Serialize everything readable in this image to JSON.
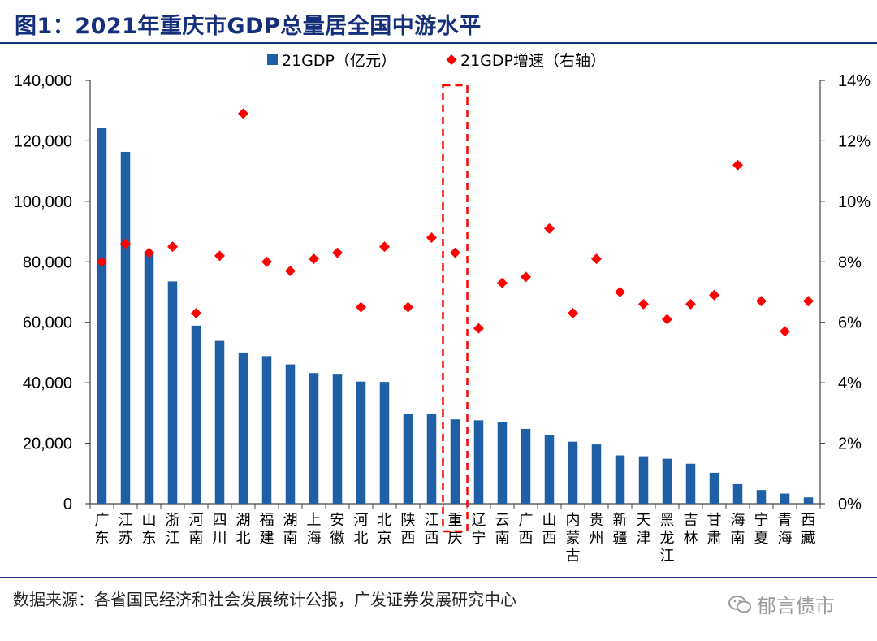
{
  "header": {
    "title": "图1：2021年重庆市GDP总量居全国中游水平"
  },
  "footer": {
    "source": "数据来源：各省国民经济和社会发展统计公报，广发证券发展研究中心",
    "watermark": "郁言债市"
  },
  "colors": {
    "bar": "#1f5fa5",
    "marker": "#ff0000",
    "highlight": "#ff0000",
    "title": "#15307a"
  },
  "chart_data": {
    "type": "bar",
    "categories": [
      "广东",
      "江苏",
      "山东",
      "浙江",
      "河南",
      "四川",
      "湖北",
      "福建",
      "湖南",
      "上海",
      "安徽",
      "河北",
      "北京",
      "陕西",
      "江西",
      "重庆",
      "辽宁",
      "云南",
      "广西",
      "山西",
      "内蒙古",
      "贵州",
      "新疆",
      "天津",
      "黑龙江",
      "吉林",
      "甘肃",
      "海南",
      "宁夏",
      "青海",
      "西藏"
    ],
    "series": [
      {
        "name": "21GDP（亿元）",
        "kind": "bar",
        "axis": "left",
        "values": [
          124370,
          116364,
          83096,
          73516,
          58887,
          53851,
          50013,
          48810,
          46063,
          43215,
          42959,
          40391,
          40270,
          29801,
          29620,
          27894,
          27584,
          27147,
          24741,
          22590,
          20514,
          19586,
          15984,
          15695,
          14879,
          13236,
          10243,
          6475,
          4522,
          3347,
          2080
        ]
      },
      {
        "name": "21GDP增速（右轴）",
        "kind": "scatter",
        "axis": "right",
        "values": [
          8.0,
          8.6,
          8.3,
          8.5,
          6.3,
          8.2,
          12.9,
          8.0,
          7.7,
          8.1,
          8.3,
          6.5,
          8.5,
          6.5,
          8.8,
          8.3,
          5.8,
          7.3,
          7.5,
          9.1,
          6.3,
          8.1,
          7.0,
          6.6,
          6.1,
          6.6,
          6.9,
          11.2,
          6.7,
          5.7,
          6.7
        ]
      }
    ],
    "y_left": {
      "min": 0,
      "max": 140000,
      "ticks": [
        "0",
        "20,000",
        "40,000",
        "60,000",
        "80,000",
        "100,000",
        "120,000",
        "140,000"
      ]
    },
    "y_right": {
      "min": 0,
      "max": 14,
      "ticks": [
        "0%",
        "2%",
        "4%",
        "6%",
        "8%",
        "10%",
        "12%",
        "14%"
      ]
    },
    "highlight_category": "重庆",
    "legend": "top-center",
    "grid": false
  }
}
